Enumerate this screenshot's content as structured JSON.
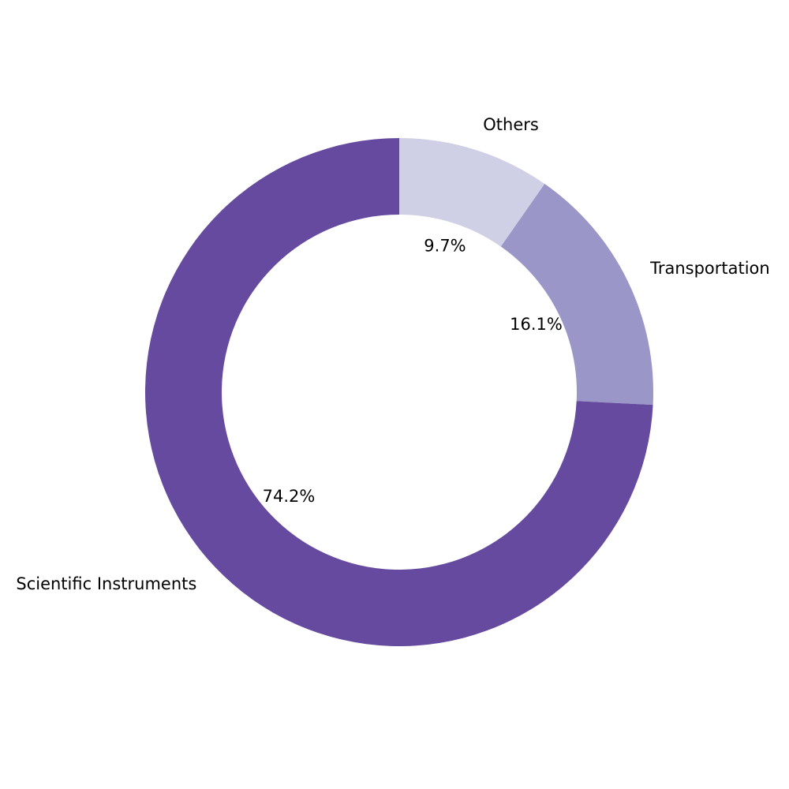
{
  "chart_data": {
    "type": "pie",
    "donut": true,
    "start_angle_deg": 90,
    "direction": "clockwise",
    "slices": [
      {
        "label": "Others",
        "value": 9.7,
        "pct_label": "9.7%",
        "color": "#cfd0e5"
      },
      {
        "label": "Transportation",
        "value": 16.1,
        "pct_label": "16.1%",
        "color": "#9a96c7"
      },
      {
        "label": "Scientific Instruments",
        "value": 74.2,
        "pct_label": "74.2%",
        "color": "#654a9f"
      }
    ]
  }
}
